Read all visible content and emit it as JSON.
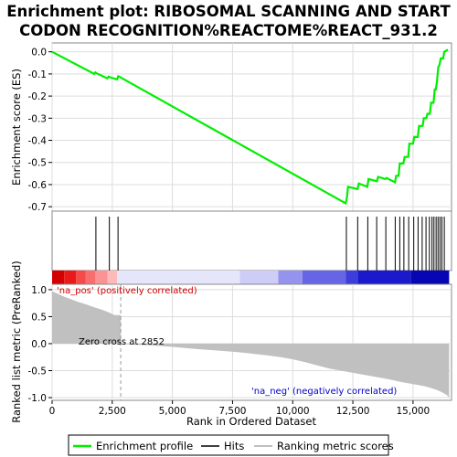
{
  "chart_data": {
    "type": "line",
    "title_lines": [
      "Enrichment plot: RIBOSOMAL SCANNING AND START",
      "CODON RECOGNITION%REACTOME%REACT_931.2"
    ],
    "es_panel": {
      "ylabel": "Enrichment score (ES)",
      "ylim": [
        -0.72,
        0.04
      ],
      "yticks": [
        0.0,
        -0.1,
        -0.2,
        -0.3,
        -0.4,
        -0.5,
        -0.6,
        -0.7
      ],
      "ytick_labels": [
        "0.0",
        "-0.1",
        "-0.2",
        "-0.3",
        "-0.4",
        "-0.5",
        "-0.6",
        "-0.7"
      ],
      "series": [
        {
          "name": "Enrichment profile",
          "color": "#00ee00",
          "x": [
            0,
            1750,
            1800,
            1850,
            2300,
            2350,
            2400,
            2700,
            2750,
            12200,
            12250,
            12300,
            12700,
            12750,
            13100,
            13150,
            13500,
            13550,
            13850,
            13900,
            14250,
            14300,
            14400,
            14450,
            14600,
            14650,
            14800,
            14850,
            15000,
            15050,
            15200,
            15250,
            15400,
            15450,
            15550,
            15600,
            15700,
            15750,
            15850,
            15880,
            15900,
            15950,
            16000,
            16050,
            16100,
            16150,
            16250,
            16300,
            16450
          ],
          "y": [
            0.0,
            -0.1,
            -0.093,
            -0.097,
            -0.12,
            -0.112,
            -0.115,
            -0.125,
            -0.11,
            -0.685,
            -0.66,
            -0.61,
            -0.62,
            -0.595,
            -0.61,
            -0.575,
            -0.585,
            -0.565,
            -0.575,
            -0.57,
            -0.59,
            -0.56,
            -0.56,
            -0.505,
            -0.505,
            -0.475,
            -0.475,
            -0.415,
            -0.415,
            -0.385,
            -0.385,
            -0.335,
            -0.335,
            -0.3,
            -0.3,
            -0.28,
            -0.28,
            -0.23,
            -0.23,
            -0.2,
            -0.17,
            -0.17,
            -0.13,
            -0.07,
            -0.06,
            -0.03,
            -0.03,
            0.0,
            0.01
          ]
        }
      ]
    },
    "hits": [
      1820,
      2380,
      2740,
      12230,
      12700,
      13120,
      13490,
      13870,
      14260,
      14450,
      14620,
      14820,
      15030,
      15210,
      15380,
      15540,
      15680,
      15790,
      15870,
      15960,
      16040,
      16120,
      16200,
      16300
    ],
    "heatmap_colors": [
      "#d40000",
      "#ea1a1a",
      "#f54a4a",
      "#f86e6e",
      "#fa9494",
      "#fcbaba",
      "#e6e6fb",
      "#cdcdf7",
      "#9494ef",
      "#6565e6",
      "#3d3dda",
      "#1a1acc",
      "#0606b3"
    ],
    "rank_panel": {
      "ylabel": "Ranked list metric (PreRanked)",
      "xlabel": "Rank in Ordered Dataset",
      "ylim": [
        -1.05,
        1.1
      ],
      "yticks": [
        1.0,
        0.5,
        0.0,
        -0.5,
        -1.0
      ],
      "ytick_labels": [
        "1.0",
        "0.5",
        "0.0",
        "-0.5",
        "-1.0"
      ],
      "xlim": [
        0,
        16600
      ],
      "xticks": [
        0,
        2500,
        5000,
        7500,
        10000,
        12500,
        15000
      ],
      "xtick_labels": [
        "0",
        "2,500",
        "5,000",
        "7,500",
        "10,000",
        "12,500",
        "15,000"
      ],
      "metric_x": [
        0,
        200,
        500,
        800,
        1100,
        1400,
        1700,
        2000,
        2300,
        2600,
        2852,
        3000,
        4000,
        5000,
        6000,
        7000,
        8000,
        9000,
        9500,
        10000,
        10500,
        11000,
        11500,
        12000,
        12500,
        13000,
        13500,
        14000,
        14500,
        15000,
        15500,
        15800,
        16000,
        16200,
        16400,
        16500
      ],
      "metric_y": [
        0.97,
        0.93,
        0.87,
        0.82,
        0.77,
        0.73,
        0.68,
        0.64,
        0.59,
        0.53,
        0.0,
        -0.01,
        -0.03,
        -0.06,
        -0.1,
        -0.13,
        -0.17,
        -0.22,
        -0.25,
        -0.29,
        -0.34,
        -0.4,
        -0.46,
        -0.5,
        -0.54,
        -0.58,
        -0.62,
        -0.66,
        -0.71,
        -0.75,
        -0.79,
        -0.83,
        -0.86,
        -0.9,
        -0.95,
        -1.0
      ],
      "zero_cross": 2852,
      "annotations": {
        "pos_label": "'na_pos' (positively correlated)",
        "neg_label": "'na_neg' (negatively correlated)",
        "zero_label": "Zero cross at 2852",
        "pos_color": "#cc0000",
        "neg_color": "#0000cc"
      }
    },
    "legend": {
      "items": [
        {
          "label": "Enrichment profile",
          "color": "#00ee00"
        },
        {
          "label": "Hits",
          "color": "#000000"
        },
        {
          "label": "Ranking metric scores",
          "color": "#c0c0c0"
        }
      ]
    }
  }
}
